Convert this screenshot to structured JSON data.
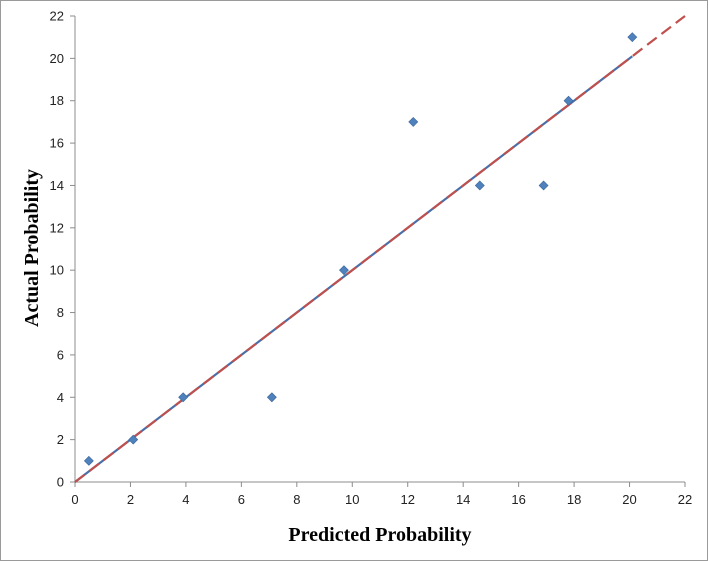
{
  "chart_data": {
    "type": "scatter",
    "title": "",
    "xlabel": "Predicted Probability",
    "ylabel": "Actual Probability",
    "xlim": [
      0,
      22
    ],
    "ylim": [
      0,
      22
    ],
    "x_ticks": [
      0,
      2,
      4,
      6,
      8,
      10,
      12,
      14,
      16,
      18,
      20,
      22
    ],
    "y_ticks": [
      0,
      2,
      4,
      6,
      8,
      10,
      12,
      14,
      16,
      18,
      20,
      22
    ],
    "grid": false,
    "legend": "none",
    "series": [
      {
        "marker": "diamond",
        "color": "#4f81bd",
        "points": [
          {
            "x": 0.5,
            "y": 1
          },
          {
            "x": 2.1,
            "y": 2
          },
          {
            "x": 3.9,
            "y": 4
          },
          {
            "x": 7.1,
            "y": 4
          },
          {
            "x": 9.7,
            "y": 10
          },
          {
            "x": 12.2,
            "y": 17
          },
          {
            "x": 14.6,
            "y": 14
          },
          {
            "x": 16.9,
            "y": 14
          },
          {
            "x": 17.8,
            "y": 18
          },
          {
            "x": 20.1,
            "y": 21
          }
        ]
      }
    ],
    "reference_lines": [
      {
        "kind": "fit",
        "color": "#4a6fa8",
        "style": "solid",
        "from": [
          0,
          0
        ],
        "to": [
          20.1,
          20.1
        ]
      },
      {
        "kind": "identity",
        "color": "#c0504d",
        "style": "dashed",
        "from": [
          0,
          0
        ],
        "to": [
          22,
          22
        ]
      }
    ]
  }
}
